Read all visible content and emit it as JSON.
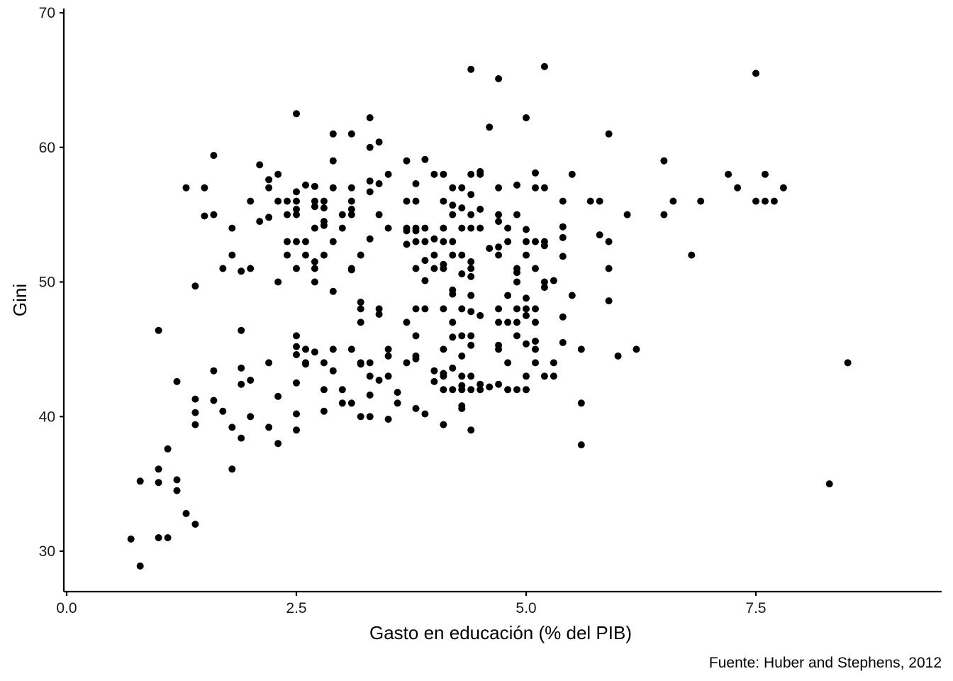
{
  "chart_data": {
    "type": "scatter",
    "title": "",
    "xlabel": "Gasto en educación (% del PIB)",
    "ylabel": "Gini",
    "caption": "Fuente: Huber and Stephens, 2012",
    "xlim": [
      0,
      9.5
    ],
    "ylim": [
      27,
      70
    ],
    "x_ticks": [
      0.0,
      2.5,
      5.0,
      7.5
    ],
    "x_tick_labels": [
      "0.0",
      "2.5",
      "5.0",
      "7.5"
    ],
    "y_ticks": [
      30,
      40,
      50,
      60,
      70
    ],
    "y_tick_labels": [
      "30",
      "40",
      "50",
      "60",
      "70"
    ],
    "grid": false,
    "legend": "none",
    "point_color": "#000000",
    "points": [
      [
        0.7,
        30.9
      ],
      [
        0.8,
        28.9
      ],
      [
        0.8,
        35.2
      ],
      [
        1.0,
        46.4
      ],
      [
        1.0,
        36.1
      ],
      [
        1.0,
        35.1
      ],
      [
        1.0,
        31.0
      ],
      [
        1.1,
        31.0
      ],
      [
        1.1,
        37.6
      ],
      [
        1.2,
        42.6
      ],
      [
        1.2,
        35.3
      ],
      [
        1.2,
        34.5
      ],
      [
        1.3,
        32.8
      ],
      [
        1.3,
        57.0
      ],
      [
        1.4,
        49.7
      ],
      [
        1.4,
        41.3
      ],
      [
        1.4,
        40.3
      ],
      [
        1.4,
        39.4
      ],
      [
        1.4,
        32.0
      ],
      [
        1.5,
        57.0
      ],
      [
        1.5,
        54.9
      ],
      [
        1.6,
        59.4
      ],
      [
        1.6,
        55.0
      ],
      [
        1.6,
        43.4
      ],
      [
        1.6,
        41.2
      ],
      [
        1.7,
        51.0
      ],
      [
        1.7,
        40.4
      ],
      [
        1.8,
        54.0
      ],
      [
        1.8,
        52.0
      ],
      [
        1.8,
        39.2
      ],
      [
        1.8,
        36.1
      ],
      [
        1.9,
        50.8
      ],
      [
        1.9,
        46.4
      ],
      [
        1.9,
        43.6
      ],
      [
        1.9,
        42.4
      ],
      [
        1.9,
        38.4
      ],
      [
        2.0,
        56.0
      ],
      [
        2.0,
        51.0
      ],
      [
        2.0,
        42.7
      ],
      [
        2.0,
        40.0
      ],
      [
        2.1,
        58.7
      ],
      [
        2.1,
        54.5
      ],
      [
        2.2,
        57.6
      ],
      [
        2.2,
        57.0
      ],
      [
        2.2,
        54.8
      ],
      [
        2.2,
        44.0
      ],
      [
        2.2,
        39.2
      ],
      [
        2.3,
        58.0
      ],
      [
        2.3,
        56.0
      ],
      [
        2.3,
        50.0
      ],
      [
        2.3,
        41.5
      ],
      [
        2.3,
        38.0
      ],
      [
        2.4,
        56.0
      ],
      [
        2.4,
        55.0
      ],
      [
        2.4,
        53.0
      ],
      [
        2.4,
        52.0
      ],
      [
        2.5,
        62.5
      ],
      [
        2.5,
        56.7
      ],
      [
        2.5,
        56.0
      ],
      [
        2.5,
        55.4
      ],
      [
        2.5,
        55.0
      ],
      [
        2.5,
        53.0
      ],
      [
        2.5,
        51.0
      ],
      [
        2.5,
        46.0
      ],
      [
        2.5,
        45.2
      ],
      [
        2.5,
        44.6
      ],
      [
        2.5,
        42.5
      ],
      [
        2.5,
        40.2
      ],
      [
        2.5,
        39.0
      ],
      [
        2.6,
        57.2
      ],
      [
        2.6,
        53.0
      ],
      [
        2.6,
        52.0
      ],
      [
        2.6,
        45.0
      ],
      [
        2.6,
        44.0
      ],
      [
        2.6,
        43.9
      ],
      [
        2.7,
        57.1
      ],
      [
        2.7,
        56.0
      ],
      [
        2.7,
        55.6
      ],
      [
        2.7,
        54.0
      ],
      [
        2.7,
        51.5
      ],
      [
        2.7,
        51.0
      ],
      [
        2.7,
        50.0
      ],
      [
        2.7,
        44.8
      ],
      [
        2.8,
        56.0
      ],
      [
        2.8,
        55.5
      ],
      [
        2.8,
        54.5
      ],
      [
        2.8,
        54.2
      ],
      [
        2.8,
        52.0
      ],
      [
        2.8,
        44.0
      ],
      [
        2.8,
        42.0
      ],
      [
        2.8,
        40.4
      ],
      [
        2.9,
        61.0
      ],
      [
        2.9,
        59.0
      ],
      [
        2.9,
        57.0
      ],
      [
        2.9,
        53.0
      ],
      [
        2.9,
        49.3
      ],
      [
        2.9,
        45.0
      ],
      [
        2.9,
        43.4
      ],
      [
        3.0,
        55.0
      ],
      [
        3.0,
        54.0
      ],
      [
        3.0,
        42.0
      ],
      [
        3.0,
        41.0
      ],
      [
        3.1,
        61.0
      ],
      [
        3.1,
        57.0
      ],
      [
        3.1,
        56.0
      ],
      [
        3.1,
        55.4
      ],
      [
        3.1,
        55.0
      ],
      [
        3.1,
        51.0
      ],
      [
        3.1,
        50.9
      ],
      [
        3.1,
        45.0
      ],
      [
        3.1,
        41.0
      ],
      [
        3.2,
        52.0
      ],
      [
        3.2,
        48.5
      ],
      [
        3.2,
        48.0
      ],
      [
        3.2,
        47.0
      ],
      [
        3.2,
        44.0
      ],
      [
        3.2,
        43.9
      ],
      [
        3.2,
        40.0
      ],
      [
        3.3,
        62.2
      ],
      [
        3.3,
        60.0
      ],
      [
        3.3,
        57.5
      ],
      [
        3.3,
        56.7
      ],
      [
        3.3,
        53.2
      ],
      [
        3.3,
        44.0
      ],
      [
        3.3,
        43.0
      ],
      [
        3.3,
        41.6
      ],
      [
        3.3,
        40.0
      ],
      [
        3.4,
        60.4
      ],
      [
        3.4,
        57.3
      ],
      [
        3.4,
        55.0
      ],
      [
        3.4,
        48.0
      ],
      [
        3.4,
        47.6
      ],
      [
        3.4,
        42.7
      ],
      [
        3.5,
        58.0
      ],
      [
        3.5,
        54.0
      ],
      [
        3.5,
        45.0
      ],
      [
        3.5,
        44.5
      ],
      [
        3.5,
        43.0
      ],
      [
        3.5,
        39.8
      ],
      [
        3.6,
        41.8
      ],
      [
        3.6,
        41.0
      ],
      [
        3.7,
        59.0
      ],
      [
        3.7,
        56.0
      ],
      [
        3.7,
        54.0
      ],
      [
        3.7,
        53.8
      ],
      [
        3.7,
        52.8
      ],
      [
        3.7,
        47.0
      ],
      [
        3.7,
        44.0
      ],
      [
        3.8,
        57.3
      ],
      [
        3.8,
        56.0
      ],
      [
        3.8,
        54.0
      ],
      [
        3.8,
        53.8
      ],
      [
        3.8,
        53.0
      ],
      [
        3.8,
        51.0
      ],
      [
        3.8,
        48.0
      ],
      [
        3.8,
        46.0
      ],
      [
        3.8,
        44.5
      ],
      [
        3.8,
        44.3
      ],
      [
        3.8,
        40.6
      ],
      [
        3.9,
        59.1
      ],
      [
        3.9,
        54.0
      ],
      [
        3.9,
        53.0
      ],
      [
        3.9,
        51.6
      ],
      [
        3.9,
        50.1
      ],
      [
        3.9,
        48.0
      ],
      [
        3.9,
        40.2
      ],
      [
        4.0,
        58.0
      ],
      [
        4.0,
        53.2
      ],
      [
        4.0,
        52.0
      ],
      [
        4.0,
        51.0
      ],
      [
        4.0,
        43.4
      ],
      [
        4.0,
        42.6
      ],
      [
        4.1,
        58.0
      ],
      [
        4.1,
        56.0
      ],
      [
        4.1,
        54.0
      ],
      [
        4.1,
        53.0
      ],
      [
        4.1,
        51.3
      ],
      [
        4.1,
        51.0
      ],
      [
        4.1,
        48.0
      ],
      [
        4.1,
        45.0
      ],
      [
        4.1,
        43.2
      ],
      [
        4.1,
        43.0
      ],
      [
        4.1,
        42.0
      ],
      [
        4.1,
        39.4
      ],
      [
        4.2,
        57.0
      ],
      [
        4.2,
        55.7
      ],
      [
        4.2,
        55.0
      ],
      [
        4.2,
        53.0
      ],
      [
        4.2,
        52.0
      ],
      [
        4.2,
        49.4
      ],
      [
        4.2,
        49.1
      ],
      [
        4.2,
        47.0
      ],
      [
        4.2,
        45.9
      ],
      [
        4.2,
        43.6
      ],
      [
        4.2,
        42.0
      ],
      [
        4.3,
        57.0
      ],
      [
        4.3,
        55.5
      ],
      [
        4.3,
        54.0
      ],
      [
        4.3,
        52.0
      ],
      [
        4.3,
        50.6
      ],
      [
        4.3,
        48.0
      ],
      [
        4.3,
        46.0
      ],
      [
        4.3,
        44.5
      ],
      [
        4.3,
        43.0
      ],
      [
        4.3,
        42.3
      ],
      [
        4.3,
        42.0
      ],
      [
        4.3,
        40.8
      ],
      [
        4.3,
        40.6
      ],
      [
        4.4,
        65.8
      ],
      [
        4.4,
        58.0
      ],
      [
        4.4,
        56.5
      ],
      [
        4.4,
        55.0
      ],
      [
        4.4,
        54.0
      ],
      [
        4.4,
        51.5
      ],
      [
        4.4,
        51.0
      ],
      [
        4.4,
        50.4
      ],
      [
        4.4,
        49.0
      ],
      [
        4.4,
        47.8
      ],
      [
        4.4,
        46.0
      ],
      [
        4.4,
        45.3
      ],
      [
        4.4,
        43.0
      ],
      [
        4.4,
        42.0
      ],
      [
        4.4,
        39.0
      ],
      [
        4.5,
        58.2
      ],
      [
        4.5,
        58.0
      ],
      [
        4.5,
        55.4
      ],
      [
        4.5,
        54.0
      ],
      [
        4.5,
        47.5
      ],
      [
        4.5,
        42.4
      ],
      [
        4.5,
        42.0
      ],
      [
        4.6,
        61.5
      ],
      [
        4.6,
        52.5
      ],
      [
        4.6,
        42.2
      ],
      [
        4.7,
        65.1
      ],
      [
        4.7,
        57.0
      ],
      [
        4.7,
        55.0
      ],
      [
        4.7,
        54.5
      ],
      [
        4.7,
        52.6
      ],
      [
        4.7,
        52.0
      ],
      [
        4.7,
        48.0
      ],
      [
        4.7,
        47.0
      ],
      [
        4.7,
        45.3
      ],
      [
        4.7,
        45.0
      ],
      [
        4.7,
        42.4
      ],
      [
        4.8,
        54.0
      ],
      [
        4.8,
        53.0
      ],
      [
        4.8,
        49.0
      ],
      [
        4.8,
        47.0
      ],
      [
        4.8,
        44.0
      ],
      [
        4.8,
        42.0
      ],
      [
        4.9,
        57.2
      ],
      [
        4.9,
        55.0
      ],
      [
        4.9,
        51.0
      ],
      [
        4.9,
        50.7
      ],
      [
        4.9,
        50.0
      ],
      [
        4.9,
        48.0
      ],
      [
        4.9,
        47.0
      ],
      [
        4.9,
        46.0
      ],
      [
        4.9,
        42.0
      ],
      [
        5.0,
        62.2
      ],
      [
        5.0,
        53.9
      ],
      [
        5.0,
        53.0
      ],
      [
        5.0,
        52.0
      ],
      [
        5.0,
        48.8
      ],
      [
        5.0,
        48.0
      ],
      [
        5.0,
        47.5
      ],
      [
        5.0,
        45.4
      ],
      [
        5.0,
        43.0
      ],
      [
        5.0,
        42.0
      ],
      [
        5.1,
        58.1
      ],
      [
        5.1,
        57.0
      ],
      [
        5.1,
        53.0
      ],
      [
        5.1,
        51.0
      ],
      [
        5.1,
        48.0
      ],
      [
        5.1,
        47.0
      ],
      [
        5.1,
        45.6
      ],
      [
        5.1,
        45.0
      ],
      [
        5.1,
        44.0
      ],
      [
        5.2,
        66.0
      ],
      [
        5.2,
        57.0
      ],
      [
        5.2,
        53.0
      ],
      [
        5.2,
        52.7
      ],
      [
        5.2,
        50.0
      ],
      [
        5.2,
        49.6
      ],
      [
        5.2,
        43.0
      ],
      [
        5.3,
        50.1
      ],
      [
        5.3,
        44.0
      ],
      [
        5.3,
        43.0
      ],
      [
        5.4,
        56.0
      ],
      [
        5.4,
        54.1
      ],
      [
        5.4,
        53.3
      ],
      [
        5.4,
        51.9
      ],
      [
        5.4,
        47.4
      ],
      [
        5.4,
        45.5
      ],
      [
        5.5,
        58.0
      ],
      [
        5.5,
        49.0
      ],
      [
        5.6,
        45.0
      ],
      [
        5.6,
        41.0
      ],
      [
        5.6,
        37.9
      ],
      [
        5.7,
        56.0
      ],
      [
        5.8,
        56.0
      ],
      [
        5.8,
        53.5
      ],
      [
        5.9,
        61.0
      ],
      [
        5.9,
        53.0
      ],
      [
        5.9,
        51.0
      ],
      [
        5.9,
        48.6
      ],
      [
        6.0,
        44.5
      ],
      [
        6.1,
        55.0
      ],
      [
        6.2,
        45.0
      ],
      [
        6.5,
        59.0
      ],
      [
        6.5,
        55.0
      ],
      [
        6.6,
        56.0
      ],
      [
        6.8,
        52.0
      ],
      [
        6.9,
        56.0
      ],
      [
        7.2,
        58.0
      ],
      [
        7.3,
        57.0
      ],
      [
        7.5,
        65.5
      ],
      [
        7.5,
        56.0
      ],
      [
        7.6,
        58.0
      ],
      [
        7.6,
        56.0
      ],
      [
        7.7,
        56.0
      ],
      [
        7.8,
        57.0
      ],
      [
        8.3,
        35.0
      ],
      [
        8.5,
        44.0
      ]
    ]
  }
}
